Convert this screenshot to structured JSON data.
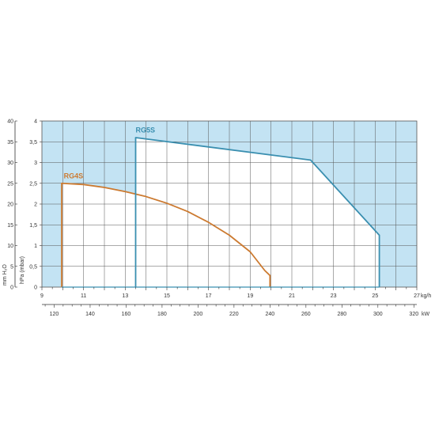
{
  "chart_data": {
    "type": "line",
    "x_axis": {
      "unit": "kg/h",
      "min": 9,
      "max": 27,
      "ticks": [
        9,
        11,
        13,
        15,
        17,
        19,
        21,
        23,
        25,
        27
      ]
    },
    "x2_axis": {
      "unit": "kW",
      "ticks": [
        120,
        140,
        160,
        180,
        200,
        220,
        240,
        260,
        280,
        300,
        320
      ]
    },
    "y_axis": {
      "label": "hPa (mbar)",
      "min": 0,
      "max": 4,
      "ticks": [
        "0",
        "0,5",
        "1",
        "1,5",
        "2",
        "2,5",
        "3",
        "3,5",
        "4"
      ]
    },
    "y2_axis": {
      "label": "mm H₂O",
      "ticks": [
        "0",
        "5",
        "10",
        "15",
        "20",
        "25",
        "30",
        "35",
        "40"
      ]
    },
    "grid": true,
    "shaded_region_color": "#c3e3f3",
    "series": [
      {
        "name": "RG4S",
        "color": "#cc7a30",
        "points": [
          [
            9.95,
            0
          ],
          [
            9.95,
            2.5
          ],
          [
            11.0,
            2.47
          ],
          [
            12.0,
            2.4
          ],
          [
            13.0,
            2.3
          ],
          [
            14.0,
            2.18
          ],
          [
            15.0,
            2.02
          ],
          [
            16.0,
            1.82
          ],
          [
            17.0,
            1.56
          ],
          [
            18.0,
            1.25
          ],
          [
            19.0,
            0.85
          ],
          [
            19.7,
            0.4
          ],
          [
            19.95,
            0.28
          ],
          [
            19.95,
            0
          ]
        ]
      },
      {
        "name": "RG5S",
        "color": "#3a8fb0",
        "points": [
          [
            13.5,
            0
          ],
          [
            13.5,
            3.6
          ],
          [
            21.9,
            3.06
          ],
          [
            25.2,
            1.25
          ],
          [
            25.2,
            0
          ]
        ]
      }
    ]
  }
}
